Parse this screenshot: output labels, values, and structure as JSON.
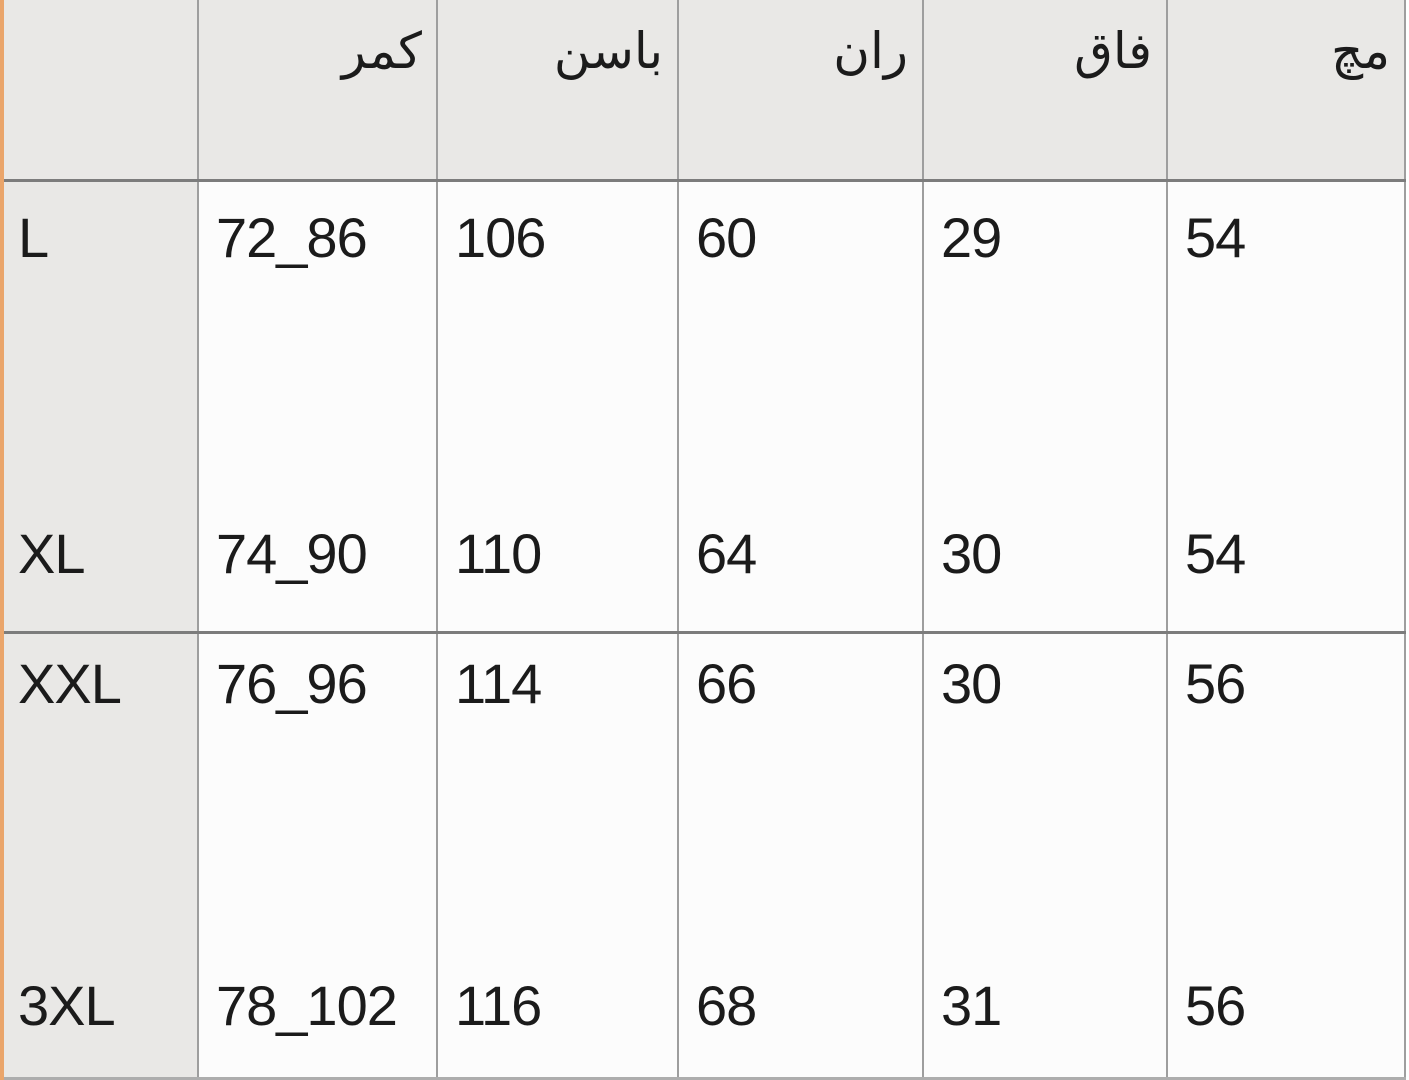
{
  "size_chart": {
    "headers": {
      "size": "",
      "waist": "کمر",
      "hip": "باسن",
      "thigh": "ران",
      "rise": "فاق",
      "cuff": "مچ"
    },
    "rows": [
      {
        "size": "L",
        "waist": "72_86",
        "hip": "106",
        "thigh": "60",
        "rise": "29",
        "cuff": "54"
      },
      {
        "size": "XL",
        "waist": "74_90",
        "hip": "110",
        "thigh": "64",
        "rise": "30",
        "cuff": "54"
      },
      {
        "size": "XXL",
        "waist": "76_96",
        "hip": "114",
        "thigh": "66",
        "rise": "30",
        "cuff": "56"
      },
      {
        "size": "3XL",
        "waist": "78_102",
        "hip": "116",
        "thigh": "68",
        "rise": "31",
        "cuff": "56"
      }
    ],
    "colors": {
      "header_bg": "#e9e8e6",
      "cell_bg": "#fcfcfc",
      "grid_vertical": "#9e9e9e",
      "grid_horizontal": "#7c7c7c",
      "bottom_edge": "#adadad",
      "left_accent": "#eaa56b",
      "text": "#1b1b1b"
    }
  }
}
